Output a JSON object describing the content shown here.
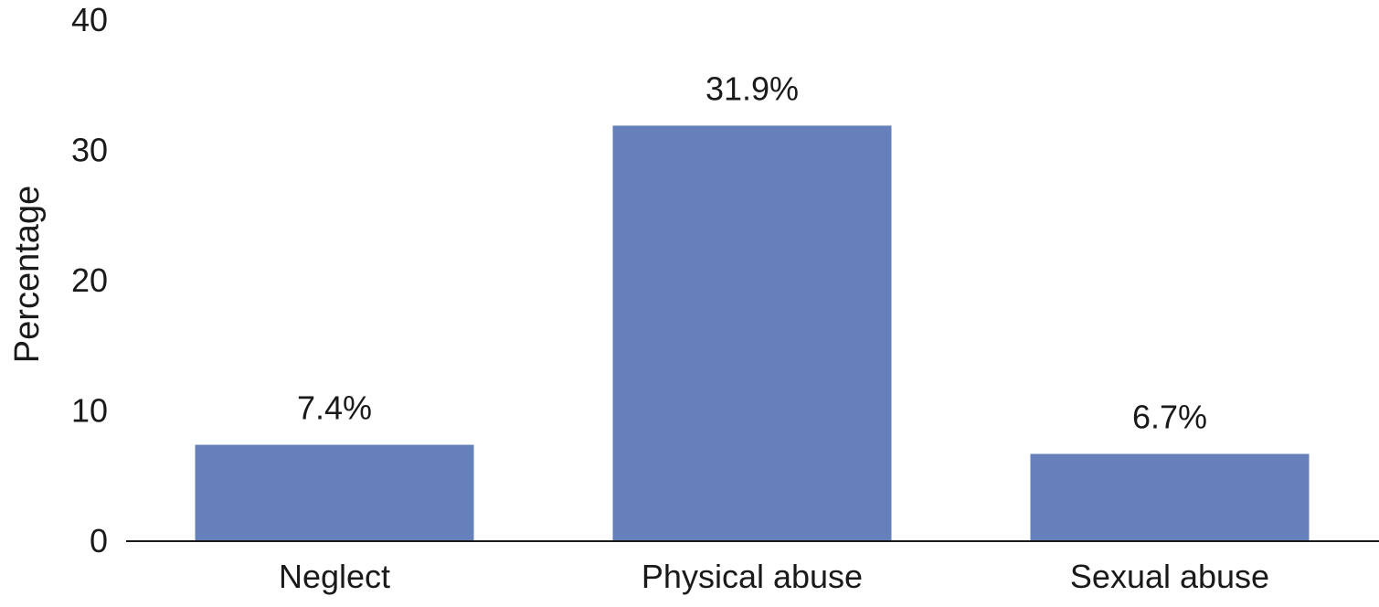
{
  "chart_data": {
    "type": "bar",
    "title": "",
    "xlabel": "",
    "ylabel": "Percentage",
    "ylim": [
      0,
      40
    ],
    "yticks": [
      0,
      10,
      20,
      30,
      40
    ],
    "grid": false,
    "legend": "none",
    "categories": [
      "Neglect",
      "Physical abuse",
      "Sexual abuse"
    ],
    "values": [
      7.4,
      31.9,
      6.7
    ],
    "data_labels": [
      "7.4%",
      "31.9%",
      "6.7%"
    ],
    "colors": {
      "bar": "#6680bb",
      "axis": "#1a1a1a",
      "text": "#1a1a1a"
    }
  }
}
